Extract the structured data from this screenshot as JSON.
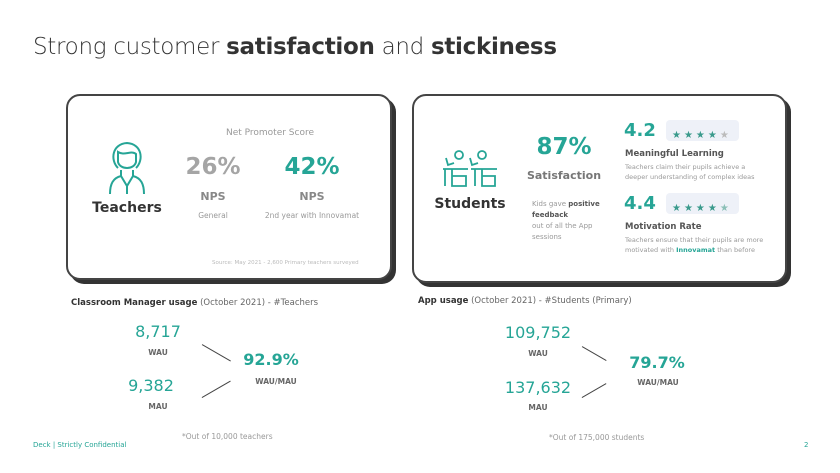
{
  "title": {
    "part1": "Strong customer ",
    "bold1": "satisfaction",
    "part2": " and ",
    "bold2": "stickiness"
  },
  "teachers_card": {
    "label": "Teachers",
    "heading": "Net Promoter Score",
    "nps_general": {
      "value": "26%",
      "label": "NPS",
      "sub": "General"
    },
    "nps_second": {
      "value": "42%",
      "label": "NPS",
      "sub": "2nd year with Innovamat"
    },
    "source": "Source: May 2021 - 2,600 Primary teachers surveyed"
  },
  "students_card": {
    "label": "Students",
    "satisfaction": {
      "value": "87%",
      "label": "Satisfaction",
      "desc_pre": "Kids gave ",
      "desc_bold": "positive feedback",
      "desc_post": "out of all the App sessions"
    },
    "ratings": [
      {
        "score": "4.2",
        "rating": 4.2,
        "title": "Meaningful Learning",
        "desc": "Teachers claim their pupils achieve a deeper understanding of complex ideas"
      },
      {
        "score": "4.4",
        "rating": 4.4,
        "title": "Motivation Rate",
        "desc_pre": "Teachers ensure that their pupils are more motivated with ",
        "desc_brand": "Innovamat",
        "desc_post": " than before"
      }
    ]
  },
  "classroom": {
    "title_bold": "Classroom Manager usage",
    "title_rest": " (October 2021) - #Teachers",
    "wau": "8,717",
    "wau_label": "WAU",
    "mau": "9,382",
    "mau_label": "MAU",
    "ratio": "92.9%",
    "ratio_label": "WAU/MAU",
    "footnote": "*Out of 10,000 teachers"
  },
  "app": {
    "title_bold": "App usage",
    "title_rest": " (October 2021) - #Students (Primary)",
    "wau": "109,752",
    "wau_label": "WAU",
    "mau": "137,632",
    "mau_label": "MAU",
    "ratio": "79.7%",
    "ratio_label": "WAU/MAU",
    "footnote": "*Out of 175,000 students"
  },
  "footer": {
    "left": "Deck | Strictly Confidential",
    "page": "2"
  },
  "colors": {
    "accent": "#26a596"
  }
}
